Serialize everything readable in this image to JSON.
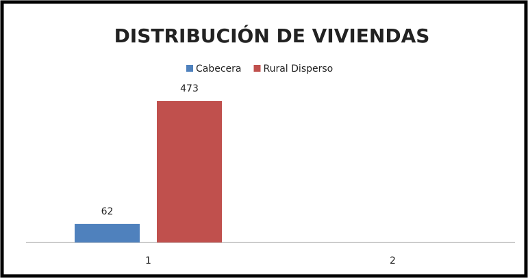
{
  "chart_data": {
    "type": "bar",
    "title": "DISTRIBUCIÓN DE VIVIENDAS",
    "categories": [
      "1",
      "2"
    ],
    "series": [
      {
        "name": "Cabecera",
        "color": "#4f81bd",
        "values": [
          62,
          null
        ]
      },
      {
        "name": "Rural Disperso",
        "color": "#c0504d",
        "values": [
          473,
          null
        ]
      }
    ],
    "legend": "top"
  }
}
